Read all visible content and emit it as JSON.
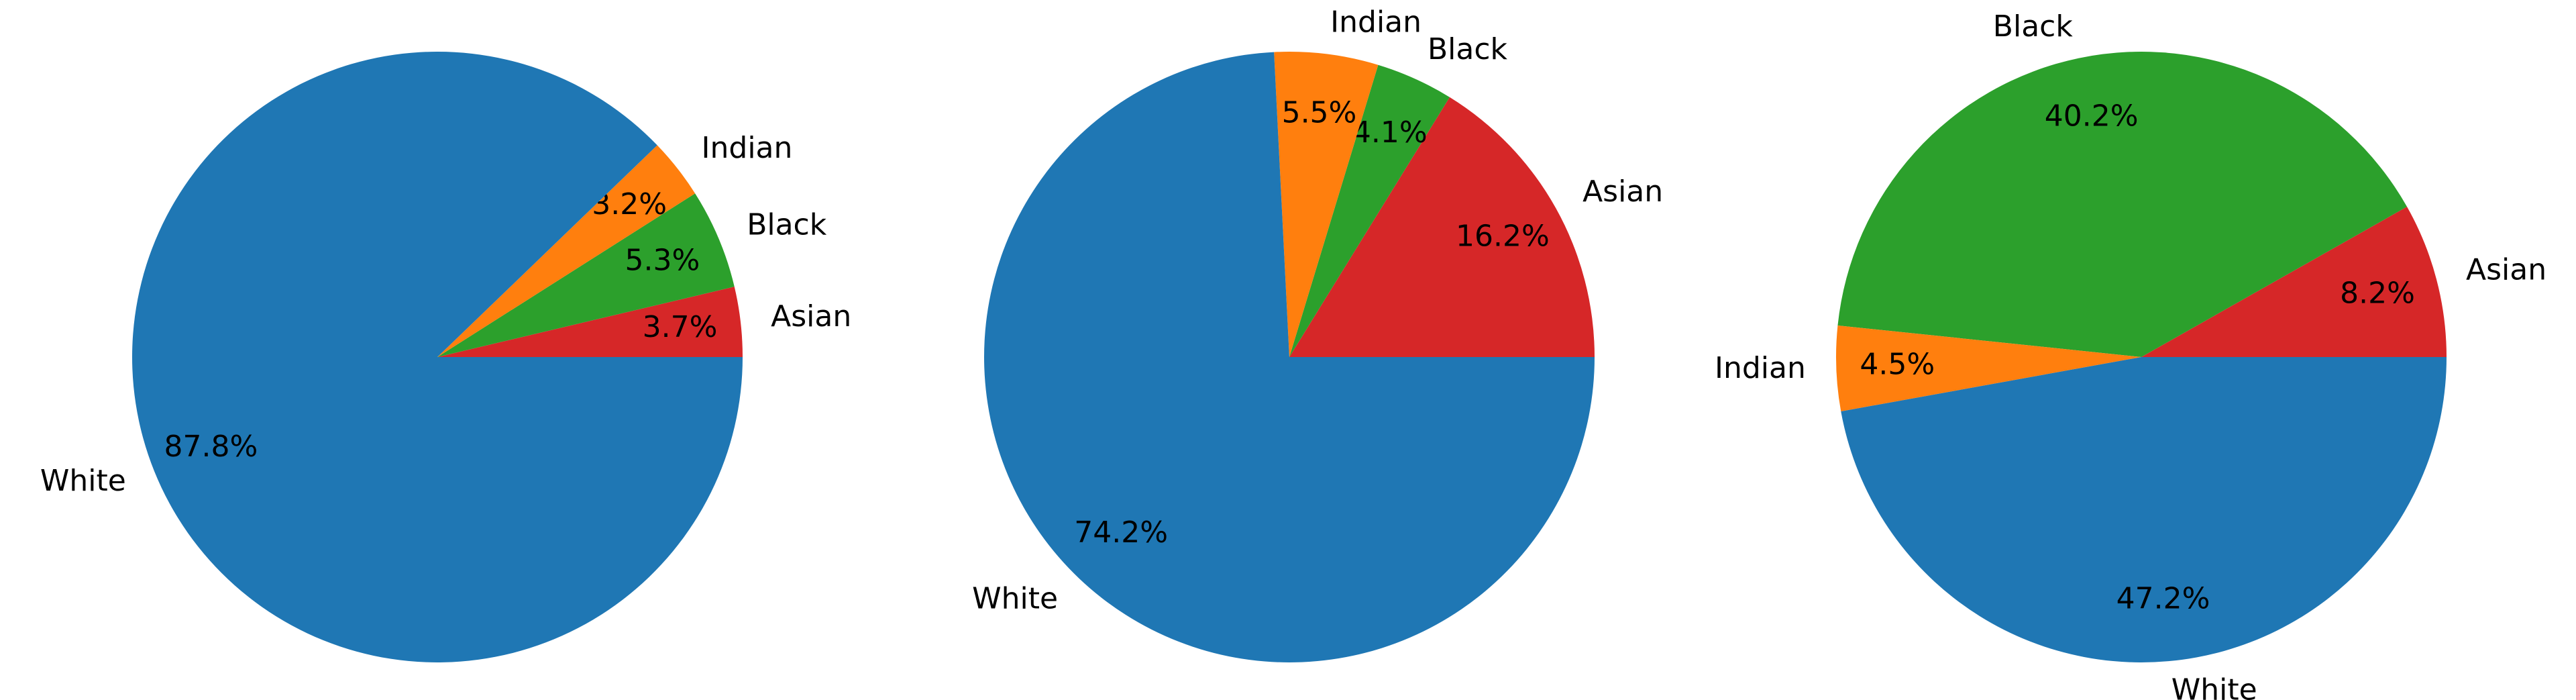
{
  "colors": {
    "White": "#1f77b4",
    "Indian": "#ff7f0e",
    "Black": "#2ca02c",
    "Asian": "#d62728"
  },
  "chart_data": [
    {
      "type": "pie",
      "title": "",
      "start_angle_deg": 0,
      "direction": "counterclockwise",
      "categories": [
        "Asian",
        "Black",
        "Indian",
        "White"
      ],
      "values": [
        3.7,
        5.3,
        3.2,
        87.8
      ],
      "labels": [
        "3.7%",
        "5.3%",
        "3.2%",
        "87.8%"
      ]
    },
    {
      "type": "pie",
      "title": "",
      "start_angle_deg": 0,
      "direction": "counterclockwise",
      "categories": [
        "Asian",
        "Black",
        "Indian",
        "White"
      ],
      "values": [
        16.2,
        4.1,
        5.5,
        74.2
      ],
      "labels": [
        "16.2%",
        "4.1%",
        "5.5%",
        "74.2%"
      ]
    },
    {
      "type": "pie",
      "title": "",
      "start_angle_deg": 0,
      "direction": "counterclockwise",
      "categories": [
        "Asian",
        "Black",
        "Indian",
        "White"
      ],
      "values": [
        8.2,
        40.2,
        4.5,
        47.2
      ],
      "labels": [
        "8.2%",
        "40.2%",
        "4.5%",
        "47.2%"
      ]
    }
  ]
}
